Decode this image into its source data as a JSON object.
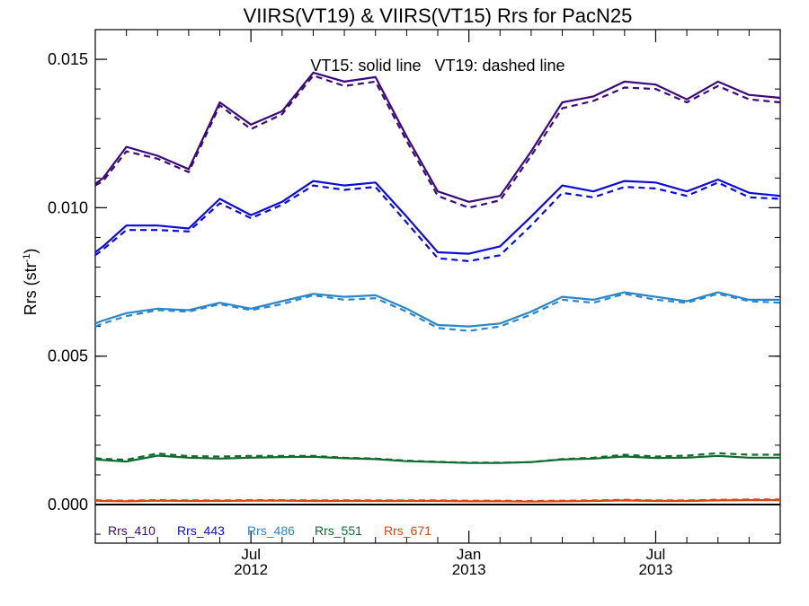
{
  "chart_data": {
    "type": "line",
    "title": "VIIRS(VT19) & VIIRS(VT15)  Rrs for PacN25",
    "ylabel_main": "Rrs (str",
    "ylabel_sup": "-1",
    "ylabel_close": ")",
    "annotation": "VT15: solid line   VT19: dashed line",
    "ylim": [
      -0.0013,
      0.016
    ],
    "yticks": [
      {
        "value": 0.0,
        "label": "0.000"
      },
      {
        "value": 0.005,
        "label": "0.005"
      },
      {
        "value": 0.01,
        "label": "0.010"
      },
      {
        "value": 0.015,
        "label": "0.015"
      }
    ],
    "y_minor_step": 0.001,
    "xlim": [
      0,
      22
    ],
    "xticks": [
      {
        "value": 5,
        "label": "Jul",
        "year": "2012"
      },
      {
        "value": 12,
        "label": "Jan",
        "year": "2013"
      },
      {
        "value": 18,
        "label": "Jul",
        "year": "2013"
      }
    ],
    "x_minor": [
      1,
      2,
      3,
      4,
      6,
      7,
      8,
      9,
      10,
      11,
      13,
      14,
      15,
      16,
      17,
      19,
      20,
      21
    ],
    "x": [
      0,
      0.25,
      1,
      2,
      3,
      4,
      5,
      6,
      7,
      8,
      9,
      10,
      11,
      12,
      13,
      14,
      15,
      16,
      17,
      18,
      19,
      20,
      21,
      22
    ],
    "zero_line": true,
    "series": [
      {
        "name": "Rrs_410",
        "color": "#3b0a7a",
        "solid": [
          0.0108,
          0.011,
          0.01205,
          0.01175,
          0.0113,
          0.01355,
          0.0128,
          0.01325,
          0.01455,
          0.01425,
          0.0144,
          0.0124,
          0.01055,
          0.0102,
          0.0104,
          0.0119,
          0.01355,
          0.01375,
          0.01425,
          0.01415,
          0.01365,
          0.01425,
          0.0138,
          0.0137
        ],
        "dashed": [
          0.01075,
          0.0109,
          0.0119,
          0.01165,
          0.0112,
          0.01345,
          0.01265,
          0.01315,
          0.01445,
          0.0141,
          0.01425,
          0.01225,
          0.0104,
          0.01,
          0.01025,
          0.01175,
          0.01335,
          0.0136,
          0.01405,
          0.014,
          0.01355,
          0.0141,
          0.01365,
          0.01355
        ]
      },
      {
        "name": "Rrs_443",
        "color": "#0b0bdd",
        "solid": [
          0.0085,
          0.0087,
          0.0094,
          0.0094,
          0.0093,
          0.0103,
          0.00975,
          0.0102,
          0.0109,
          0.01075,
          0.01085,
          0.0097,
          0.0085,
          0.00845,
          0.0087,
          0.0097,
          0.01075,
          0.01055,
          0.0109,
          0.01085,
          0.01055,
          0.01095,
          0.0105,
          0.0104
        ],
        "dashed": [
          0.0084,
          0.0086,
          0.00925,
          0.00925,
          0.0092,
          0.01015,
          0.00965,
          0.0101,
          0.01075,
          0.0106,
          0.0107,
          0.0095,
          0.0083,
          0.0082,
          0.0084,
          0.0094,
          0.0105,
          0.01035,
          0.0107,
          0.01065,
          0.0104,
          0.01085,
          0.01035,
          0.0103
        ]
      },
      {
        "name": "Rrs_486",
        "color": "#2b86c9",
        "solid": [
          0.0061,
          0.0062,
          0.00645,
          0.0066,
          0.00655,
          0.0068,
          0.0066,
          0.00685,
          0.0071,
          0.007,
          0.00705,
          0.0066,
          0.00605,
          0.006,
          0.0061,
          0.0065,
          0.007,
          0.0069,
          0.00715,
          0.007,
          0.00685,
          0.00715,
          0.0069,
          0.0069
        ],
        "dashed": [
          0.006,
          0.0061,
          0.00635,
          0.00655,
          0.0065,
          0.00675,
          0.00655,
          0.00675,
          0.00705,
          0.0069,
          0.00695,
          0.0065,
          0.00595,
          0.00585,
          0.006,
          0.0064,
          0.0069,
          0.0068,
          0.0071,
          0.0069,
          0.0068,
          0.0071,
          0.00685,
          0.0068
        ]
      },
      {
        "name": "Rrs_551",
        "color": "#0f6b2e",
        "solid": [
          0.00152,
          0.0015,
          0.00145,
          0.00165,
          0.00158,
          0.00155,
          0.00158,
          0.0016,
          0.00161,
          0.00156,
          0.00153,
          0.00146,
          0.00143,
          0.0014,
          0.0014,
          0.00143,
          0.00152,
          0.00155,
          0.00162,
          0.00157,
          0.00158,
          0.00164,
          0.00158,
          0.00158
        ],
        "dashed": [
          0.00156,
          0.00154,
          0.00151,
          0.00172,
          0.00163,
          0.00162,
          0.00164,
          0.00164,
          0.00164,
          0.00158,
          0.00155,
          0.00148,
          0.00144,
          0.00141,
          0.00141,
          0.00143,
          0.00153,
          0.00158,
          0.00168,
          0.00162,
          0.00165,
          0.00173,
          0.00168,
          0.00168
        ]
      },
      {
        "name": "Rrs_671",
        "color": "#d9470f",
        "solid": [
          0.00013,
          0.00012,
          0.00011,
          0.00013,
          0.00012,
          0.00012,
          0.00013,
          0.00013,
          0.00012,
          0.00012,
          0.00012,
          0.00012,
          0.00012,
          0.00011,
          0.00011,
          0.0001,
          0.00011,
          0.00012,
          0.00014,
          0.00012,
          0.00012,
          0.00014,
          0.00015,
          0.00015
        ],
        "dashed": [
          0.00015,
          0.00014,
          0.00013,
          0.00015,
          0.00014,
          0.00014,
          0.00015,
          0.00015,
          0.00014,
          0.00014,
          0.00014,
          0.00014,
          0.00014,
          0.00013,
          0.00013,
          0.00012,
          0.00013,
          0.00014,
          0.00016,
          0.00014,
          0.00014,
          0.00016,
          0.00017,
          0.00017
        ]
      }
    ]
  }
}
